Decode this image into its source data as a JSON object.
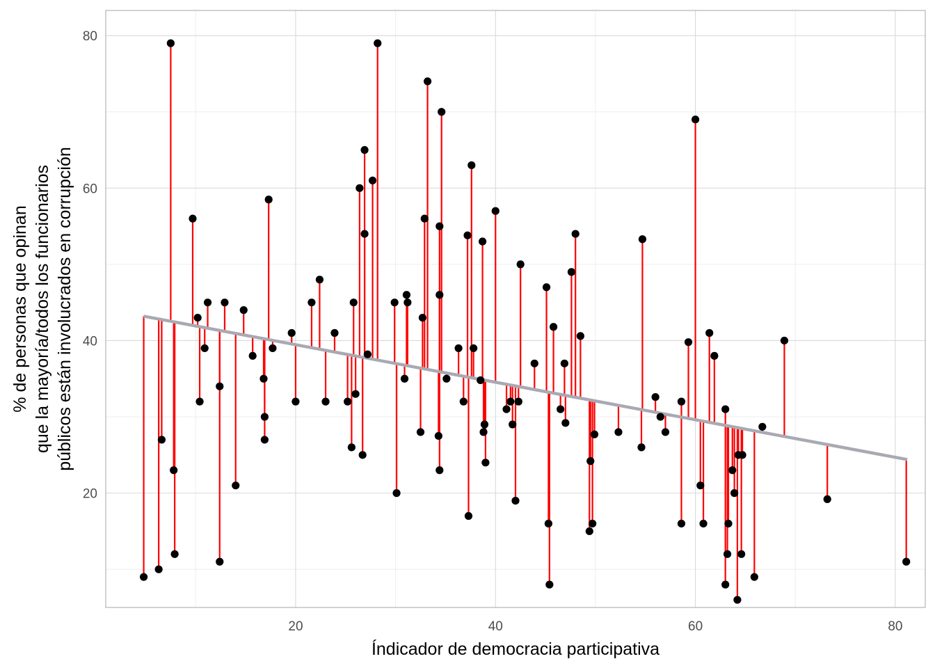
{
  "chart_data": {
    "type": "scatter",
    "title": "",
    "xlabel": "Índicador de democracia participativa",
    "ylabel_lines": [
      "% de personas que opinan",
      "que la mayoría/todos  los funcionarios",
      "públicos están involucrados en corrupción"
    ],
    "xlim": [
      1,
      83
    ],
    "ylim": [
      5,
      83.3
    ],
    "x_ticks": [
      20,
      40,
      60,
      80
    ],
    "y_ticks": [
      20,
      40,
      60,
      80
    ],
    "x_minor": [
      10,
      30,
      50,
      70
    ],
    "y_minor": [
      10,
      30,
      50,
      70
    ],
    "grid": true,
    "colors": {
      "points": "#000000",
      "residuals": "#ff0000",
      "fit_line": "#a9a9b4",
      "grid_major": "#d9d9d9",
      "grid_minor": "#eeeeee",
      "panel_border": "#b3b3b3"
    },
    "fit_line": {
      "x": [
        4.8,
        81.2
      ],
      "y": [
        43.2,
        24.4
      ]
    },
    "points": [
      {
        "x": 4.8,
        "y": 9
      },
      {
        "x": 6.3,
        "y": 10
      },
      {
        "x": 6.6,
        "y": 27
      },
      {
        "x": 7.5,
        "y": 79
      },
      {
        "x": 7.8,
        "y": 23
      },
      {
        "x": 7.9,
        "y": 12
      },
      {
        "x": 9.7,
        "y": 56
      },
      {
        "x": 10.2,
        "y": 43
      },
      {
        "x": 10.4,
        "y": 32
      },
      {
        "x": 10.9,
        "y": 39
      },
      {
        "x": 11.2,
        "y": 45
      },
      {
        "x": 12.4,
        "y": 34
      },
      {
        "x": 12.4,
        "y": 11
      },
      {
        "x": 12.9,
        "y": 45
      },
      {
        "x": 14.0,
        "y": 21
      },
      {
        "x": 14.8,
        "y": 44
      },
      {
        "x": 15.7,
        "y": 38
      },
      {
        "x": 16.8,
        "y": 35
      },
      {
        "x": 16.9,
        "y": 30
      },
      {
        "x": 16.9,
        "y": 27
      },
      {
        "x": 17.3,
        "y": 58.5
      },
      {
        "x": 17.7,
        "y": 39
      },
      {
        "x": 19.6,
        "y": 41
      },
      {
        "x": 20.0,
        "y": 32
      },
      {
        "x": 21.6,
        "y": 45
      },
      {
        "x": 22.4,
        "y": 48
      },
      {
        "x": 23.0,
        "y": 32
      },
      {
        "x": 23.9,
        "y": 41
      },
      {
        "x": 25.2,
        "y": 32
      },
      {
        "x": 25.6,
        "y": 26
      },
      {
        "x": 25.8,
        "y": 45
      },
      {
        "x": 26.0,
        "y": 33
      },
      {
        "x": 26.4,
        "y": 60
      },
      {
        "x": 26.7,
        "y": 25
      },
      {
        "x": 26.9,
        "y": 54
      },
      {
        "x": 26.9,
        "y": 65
      },
      {
        "x": 27.2,
        "y": 38.2
      },
      {
        "x": 27.7,
        "y": 61
      },
      {
        "x": 28.2,
        "y": 79
      },
      {
        "x": 29.9,
        "y": 45
      },
      {
        "x": 30.1,
        "y": 20
      },
      {
        "x": 30.9,
        "y": 35
      },
      {
        "x": 31.1,
        "y": 46
      },
      {
        "x": 31.2,
        "y": 45
      },
      {
        "x": 32.5,
        "y": 28
      },
      {
        "x": 32.7,
        "y": 43
      },
      {
        "x": 32.9,
        "y": 56
      },
      {
        "x": 33.2,
        "y": 74
      },
      {
        "x": 34.3,
        "y": 27.5
      },
      {
        "x": 34.4,
        "y": 23
      },
      {
        "x": 34.4,
        "y": 46
      },
      {
        "x": 34.4,
        "y": 55
      },
      {
        "x": 34.6,
        "y": 70
      },
      {
        "x": 35.1,
        "y": 35
      },
      {
        "x": 36.3,
        "y": 39
      },
      {
        "x": 36.8,
        "y": 32
      },
      {
        "x": 37.2,
        "y": 53.8
      },
      {
        "x": 37.3,
        "y": 17
      },
      {
        "x": 37.6,
        "y": 63
      },
      {
        "x": 37.8,
        "y": 39
      },
      {
        "x": 38.5,
        "y": 34.8
      },
      {
        "x": 38.7,
        "y": 53
      },
      {
        "x": 38.8,
        "y": 28
      },
      {
        "x": 38.9,
        "y": 29
      },
      {
        "x": 39.0,
        "y": 24
      },
      {
        "x": 40.0,
        "y": 57
      },
      {
        "x": 41.1,
        "y": 31
      },
      {
        "x": 41.5,
        "y": 32
      },
      {
        "x": 41.7,
        "y": 29
      },
      {
        "x": 42.0,
        "y": 19
      },
      {
        "x": 42.3,
        "y": 32
      },
      {
        "x": 42.5,
        "y": 50
      },
      {
        "x": 43.9,
        "y": 37
      },
      {
        "x": 45.1,
        "y": 47
      },
      {
        "x": 45.3,
        "y": 16
      },
      {
        "x": 45.4,
        "y": 8
      },
      {
        "x": 45.8,
        "y": 41.8
      },
      {
        "x": 46.5,
        "y": 31
      },
      {
        "x": 46.9,
        "y": 37
      },
      {
        "x": 47.0,
        "y": 29.2
      },
      {
        "x": 47.6,
        "y": 49
      },
      {
        "x": 48.0,
        "y": 54
      },
      {
        "x": 48.5,
        "y": 40.6
      },
      {
        "x": 49.4,
        "y": 15
      },
      {
        "x": 49.5,
        "y": 24.2
      },
      {
        "x": 49.7,
        "y": 16
      },
      {
        "x": 49.9,
        "y": 27.7
      },
      {
        "x": 52.3,
        "y": 28
      },
      {
        "x": 54.6,
        "y": 26
      },
      {
        "x": 54.7,
        "y": 53.3
      },
      {
        "x": 56.0,
        "y": 32.6
      },
      {
        "x": 56.5,
        "y": 30
      },
      {
        "x": 57.0,
        "y": 28
      },
      {
        "x": 58.6,
        "y": 32
      },
      {
        "x": 58.6,
        "y": 16
      },
      {
        "x": 59.3,
        "y": 39.8
      },
      {
        "x": 60.0,
        "y": 69
      },
      {
        "x": 60.5,
        "y": 21
      },
      {
        "x": 60.8,
        "y": 16
      },
      {
        "x": 61.4,
        "y": 41
      },
      {
        "x": 61.9,
        "y": 38
      },
      {
        "x": 63.0,
        "y": 31
      },
      {
        "x": 63.0,
        "y": 8
      },
      {
        "x": 63.2,
        "y": 12
      },
      {
        "x": 63.3,
        "y": 16
      },
      {
        "x": 63.7,
        "y": 23
      },
      {
        "x": 63.9,
        "y": 20
      },
      {
        "x": 64.2,
        "y": 6
      },
      {
        "x": 64.3,
        "y": 25
      },
      {
        "x": 64.6,
        "y": 12
      },
      {
        "x": 64.7,
        "y": 25
      },
      {
        "x": 65.9,
        "y": 9
      },
      {
        "x": 66.7,
        "y": 28.7
      },
      {
        "x": 68.9,
        "y": 40
      },
      {
        "x": 73.2,
        "y": 19.2
      },
      {
        "x": 81.1,
        "y": 11
      }
    ]
  }
}
